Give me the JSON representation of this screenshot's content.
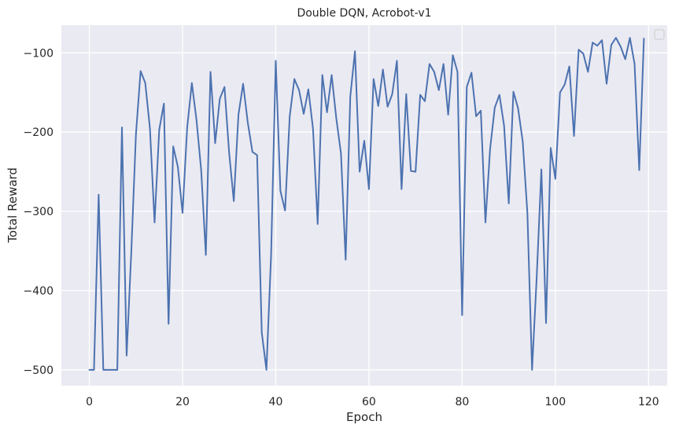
{
  "chart_data": {
    "type": "line",
    "title": "Double DQN, Acrobot-v1",
    "xlabel": "Epoch",
    "ylabel": "Total Reward",
    "xlim": [
      -6,
      124
    ],
    "ylim": [
      -520,
      -65
    ],
    "xticks": [
      0,
      20,
      40,
      60,
      80,
      100,
      120
    ],
    "yticks": [
      -500,
      -400,
      -300,
      -200,
      -100
    ],
    "ytick_labels": [
      "−500",
      "−400",
      "−300",
      "−200",
      "−100"
    ],
    "grid": true,
    "legend": "top-right, empty",
    "background": "#eaeaf2",
    "grid_color": "#ffffff",
    "line_color": "#4c72b0",
    "series": [
      {
        "x": [
          0,
          1,
          2,
          3,
          4,
          5,
          6,
          7,
          8,
          9,
          10,
          11,
          12,
          13,
          14,
          15,
          16,
          17,
          18,
          19,
          20,
          21,
          22,
          23,
          24,
          25,
          26,
          27,
          28,
          29,
          30,
          31,
          32,
          33,
          34,
          35,
          36,
          37,
          38,
          39,
          40,
          41,
          42,
          43,
          44,
          45,
          46,
          47,
          48,
          49,
          50,
          51,
          52,
          53,
          54,
          55,
          56,
          57,
          58,
          59,
          60,
          61,
          62,
          63,
          64,
          65,
          66,
          67,
          68,
          69,
          70,
          71,
          72,
          73,
          74,
          75,
          76,
          77,
          78,
          79,
          80,
          81,
          82,
          83,
          84,
          85,
          86,
          87,
          88,
          89,
          90,
          91,
          92,
          93,
          94,
          95,
          96,
          97,
          98,
          99,
          100,
          101,
          102,
          103,
          104,
          105,
          106,
          107,
          108,
          109,
          110,
          111,
          112,
          113,
          114,
          115,
          116,
          117,
          118,
          119
        ],
        "values": [
          -500,
          -500,
          -279,
          -500,
          -500,
          -500,
          -500,
          -194,
          -482,
          -352,
          -203,
          -123,
          -138,
          -195,
          -314,
          -197,
          -164,
          -442,
          -218,
          -244,
          -302,
          -194,
          -138,
          -185,
          -248,
          -355,
          -124,
          -214,
          -158,
          -143,
          -226,
          -287,
          -178,
          -139,
          -188,
          -225,
          -229,
          -453,
          -500,
          -356,
          -110,
          -274,
          -299,
          -180,
          -133,
          -147,
          -177,
          -146,
          -196,
          -316,
          -128,
          -175,
          -128,
          -183,
          -227,
          -361,
          -155,
          -98,
          -250,
          -211,
          -272,
          -133,
          -167,
          -121,
          -168,
          -152,
          -110,
          -272,
          -152,
          -249,
          -250,
          -153,
          -161,
          -114,
          -124,
          -147,
          -114,
          -178,
          -103,
          -124,
          -431,
          -143,
          -125,
          -180,
          -173,
          -314,
          -221,
          -169,
          -153,
          -192,
          -290,
          -149,
          -170,
          -212,
          -302,
          -500,
          -383,
          -247,
          -441,
          -220,
          -259,
          -150,
          -140,
          -117,
          -205,
          -96,
          -101,
          -124,
          -87,
          -91,
          -84,
          -139,
          -90,
          -81,
          -92,
          -108,
          -81,
          -114,
          -248,
          -82
        ]
      }
    ]
  }
}
